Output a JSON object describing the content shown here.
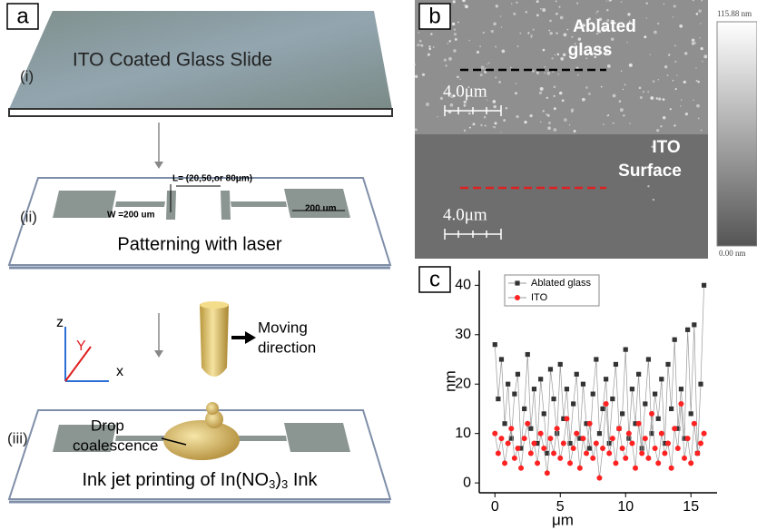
{
  "panel_a": {
    "label": "a",
    "slide_i": {
      "tag": "(i)",
      "text": "ITO Coated Glass Slide"
    },
    "slide_ii": {
      "tag": "(ii)",
      "length_label": "L= (20,50,or 80μm)",
      "width_label": "W =200 um",
      "pad_label": "200 um",
      "caption": "Patterning with laser"
    },
    "axes": {
      "z": "z",
      "y": "Y",
      "x": "x"
    },
    "motion": [
      "Moving",
      "direction"
    ],
    "slide_iii": {
      "tag": "(iii)",
      "drop_label": [
        "Drop",
        "coalescence"
      ],
      "caption": [
        "Ink jet printing of In(NO",
        "3",
        ")",
        "3",
        " Ink"
      ]
    }
  },
  "panel_b": {
    "label": "b",
    "top_label": [
      "Ablated",
      "glass"
    ],
    "bottom_label": [
      "ITO",
      "Surface"
    ],
    "scale_bar": "4.0μm",
    "colorbar_max": "115.88 nm",
    "colorbar_min": "0.00 nm"
  },
  "panel_c": {
    "label": "c"
  },
  "chart_data": {
    "type": "line",
    "xlabel": "μm",
    "ylabel": "nm",
    "x": [
      0,
      0.25,
      0.5,
      0.75,
      1,
      1.25,
      1.5,
      1.75,
      2,
      2.25,
      2.5,
      2.75,
      3,
      3.25,
      3.5,
      3.75,
      4,
      4.25,
      4.5,
      4.75,
      5,
      5.25,
      5.5,
      5.75,
      6,
      6.25,
      6.5,
      6.75,
      7,
      7.25,
      7.5,
      7.75,
      8,
      8.25,
      8.5,
      8.75,
      9,
      9.25,
      9.5,
      9.75,
      10,
      10.25,
      10.5,
      10.75,
      11,
      11.25,
      11.5,
      11.75,
      12,
      12.25,
      12.5,
      12.75,
      13,
      13.25,
      13.5,
      13.75,
      14,
      14.25,
      14.5,
      14.75,
      15,
      15.25,
      15.5,
      15.75,
      16
    ],
    "series": [
      {
        "name": "Ablated glass",
        "color": "#333333",
        "marker": "square",
        "values": [
          28,
          17,
          25,
          12,
          20,
          9,
          18,
          22,
          7,
          15,
          26,
          11,
          19,
          8,
          21,
          14,
          6,
          23,
          17,
          10,
          24,
          13,
          19,
          8,
          16,
          22,
          9,
          20,
          12,
          7,
          18,
          25,
          10,
          15,
          21,
          8,
          17,
          24,
          11,
          14,
          27,
          9,
          19,
          12,
          22,
          7,
          16,
          25,
          10,
          18,
          13,
          21,
          8,
          24,
          15,
          29,
          11,
          19,
          9,
          31,
          14,
          32,
          6,
          20,
          40
        ]
      },
      {
        "name": "ITO",
        "color": "#ff2222",
        "marker": "circle",
        "values": [
          10,
          6,
          9,
          4,
          8,
          11,
          5,
          7,
          3,
          9,
          12,
          6,
          8,
          4,
          10,
          7,
          2,
          9,
          6,
          11,
          5,
          8,
          13,
          4,
          7,
          10,
          3,
          9,
          6,
          12,
          5,
          8,
          1,
          7,
          16,
          6,
          9,
          4,
          11,
          7,
          5,
          10,
          8,
          3,
          12,
          6,
          9,
          5,
          14,
          7,
          4,
          10,
          6,
          8,
          3,
          11,
          7,
          16,
          5,
          9,
          4,
          12,
          6,
          8,
          10
        ]
      }
    ],
    "xlim": [
      -1.2,
      17
    ],
    "ylim": [
      -2,
      43
    ],
    "xticks": [
      0,
      5,
      10,
      15
    ],
    "yticks": [
      0,
      10,
      20,
      30,
      40
    ]
  }
}
